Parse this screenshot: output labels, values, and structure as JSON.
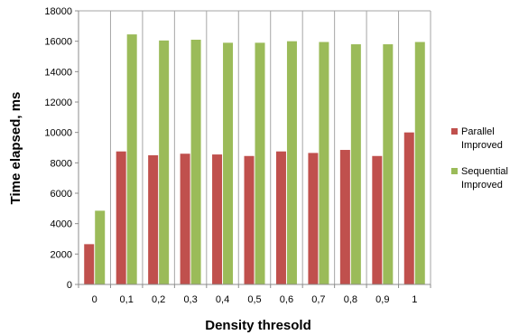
{
  "chart_data": {
    "type": "bar",
    "xlabel": "Density thresold",
    "ylabel": "Time elapsed, ms",
    "ylim": [
      0,
      18000
    ],
    "ytick_step": 2000,
    "grid": "vertical",
    "legend_position": "right",
    "categories": [
      "0",
      "0,1",
      "0,2",
      "0,3",
      "0,4",
      "0,5",
      "0,6",
      "0,7",
      "0,8",
      "0,9",
      "1"
    ],
    "series": [
      {
        "name": "Parallel Improved",
        "name_lines": [
          "Parallel",
          "Improved"
        ],
        "color": "#C0504D",
        "values": [
          2650,
          8750,
          8500,
          8600,
          8550,
          8450,
          8750,
          8650,
          8850,
          8450,
          10000
        ]
      },
      {
        "name": "Sequential Improved",
        "name_lines": [
          "Sequential",
          "Improved"
        ],
        "color": "#9BBB59",
        "values": [
          4850,
          16450,
          16050,
          16100,
          15900,
          15900,
          16000,
          15950,
          15800,
          15800,
          15950
        ]
      }
    ]
  }
}
